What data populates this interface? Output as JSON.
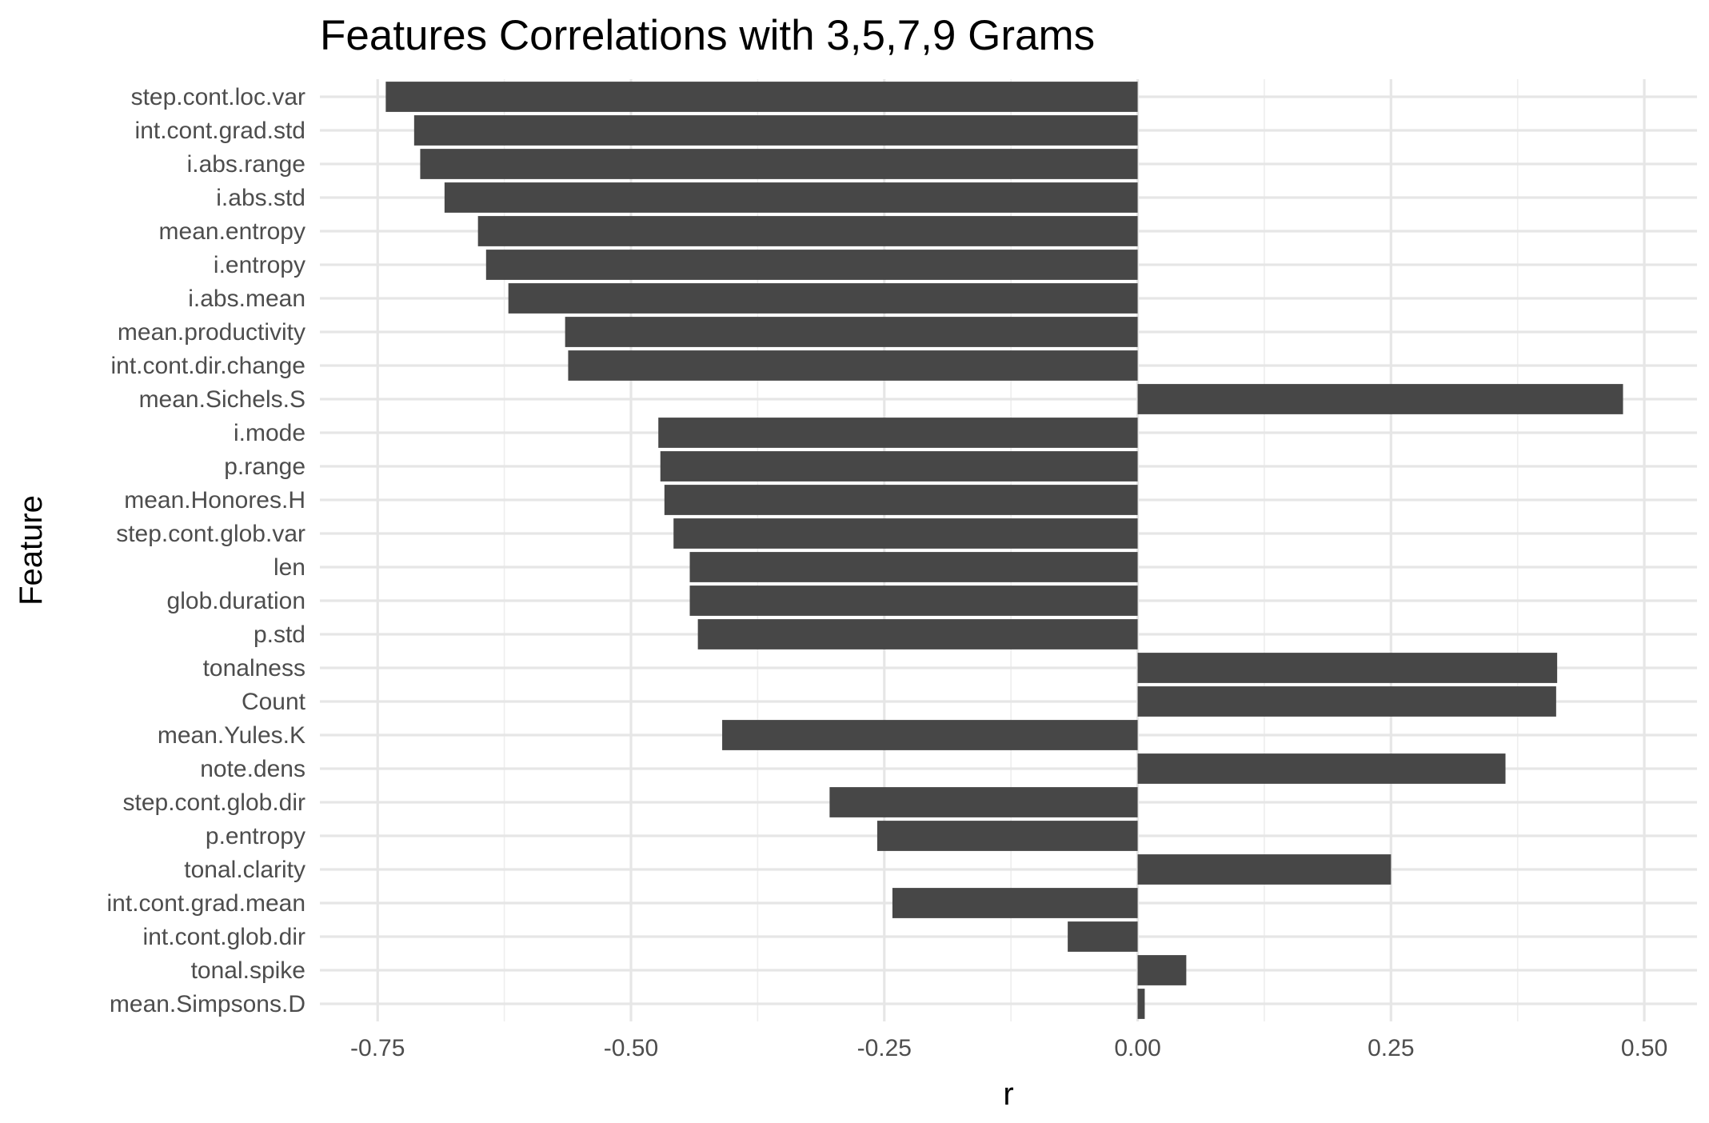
{
  "chart_data": {
    "type": "bar",
    "orientation": "horizontal",
    "title": "Features Correlations with 3,5,7,9 Grams",
    "xlabel": "r",
    "ylabel": "Feature",
    "xlim": [
      -0.807,
      0.552
    ],
    "x_ticks": [
      -0.75,
      -0.5,
      -0.25,
      0.0,
      0.25,
      0.5
    ],
    "x_tick_labels": [
      "-0.75",
      "-0.50",
      "-0.25",
      "0.00",
      "0.25",
      "0.50"
    ],
    "grid": true,
    "bar_color": "#474747",
    "categories": [
      "step.cont.loc.var",
      "int.cont.grad.std",
      "i.abs.range",
      "i.abs.std",
      "mean.entropy",
      "i.entropy",
      "i.abs.mean",
      "mean.productivity",
      "int.cont.dir.change",
      "mean.Sichels.S",
      "i.mode",
      "p.range",
      "mean.Honores.H",
      "step.cont.glob.var",
      "len",
      "glob.duration",
      "p.std",
      "tonalness",
      "Count",
      "mean.Yules.K",
      "note.dens",
      "step.cont.glob.dir",
      "p.entropy",
      "tonal.clarity",
      "int.cont.grad.mean",
      "int.cont.glob.dir",
      "tonal.spike",
      "mean.Simpsons.D"
    ],
    "values": [
      -0.742,
      -0.714,
      -0.708,
      -0.684,
      -0.651,
      -0.643,
      -0.621,
      -0.565,
      -0.562,
      0.479,
      -0.473,
      -0.471,
      -0.467,
      -0.458,
      -0.442,
      -0.442,
      -0.434,
      0.414,
      0.413,
      -0.41,
      0.363,
      -0.304,
      -0.257,
      0.25,
      -0.242,
      -0.069,
      0.048,
      0.007
    ]
  }
}
